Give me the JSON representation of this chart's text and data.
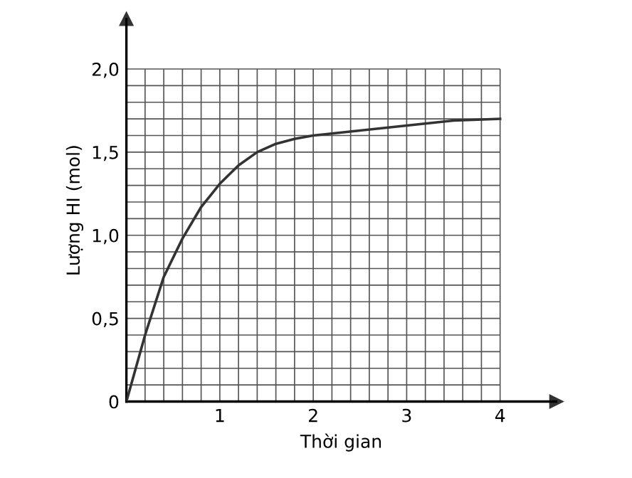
{
  "chart_data": {
    "type": "line",
    "xlabel": "Thời gian",
    "ylabel": "Lượng HI (mol)",
    "x": [
      0,
      0.1,
      0.2,
      0.4,
      0.6,
      0.8,
      1.0,
      1.2,
      1.4,
      1.6,
      1.8,
      2.0,
      2.5,
      3.0,
      3.5,
      4.0
    ],
    "values": [
      0,
      0.2,
      0.4,
      0.75,
      0.98,
      1.17,
      1.31,
      1.42,
      1.5,
      1.55,
      1.58,
      1.6,
      1.63,
      1.66,
      1.69,
      1.7
    ],
    "color": "#333333",
    "marker": "none",
    "line_style": "solid",
    "grid": true,
    "xlim": [
      0,
      4.6
    ],
    "ylim": [
      0,
      2.3
    ],
    "xticks": [
      1,
      2,
      3,
      4
    ],
    "yticks": [
      0,
      {
        "value": 0.5,
        "label": "0,5"
      },
      {
        "value": 1.0,
        "label": "1,0"
      },
      {
        "value": 1.5,
        "label": "1,5"
      },
      {
        "value": 2.0,
        "label": "2,0"
      }
    ]
  }
}
